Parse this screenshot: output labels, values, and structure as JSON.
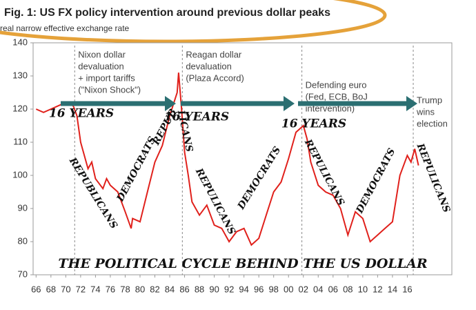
{
  "chart_data": {
    "type": "line",
    "title": "Fig. 1: US FX policy intervention around previous dollar peaks",
    "subtitle": "real narrow effective exchange rate",
    "caption": "THE POLITICAL CYCLE BEHIND THE US DOLLAR",
    "color": "#e0201b",
    "x": [
      1966,
      1967,
      1968,
      1969,
      1970,
      1971,
      1971.5,
      1972,
      1973,
      1973.5,
      1974,
      1975,
      1975.5,
      1976,
      1977,
      1978,
      1978.8,
      1979,
      1980,
      1981,
      1982,
      1983,
      1984,
      1985,
      1985.2,
      1985.6,
      1986,
      1986.5,
      1987,
      1988,
      1989,
      1990,
      1991,
      1992,
      1993,
      1994,
      1995,
      1996,
      1997,
      1998,
      1999,
      2000,
      2001,
      2002,
      2002.5,
      2003,
      2004,
      2005,
      2006,
      2007,
      2008,
      2009,
      2010,
      2011,
      2012,
      2013,
      2014,
      2015,
      2016,
      2016.5,
      2017,
      2017.5
    ],
    "values": [
      120,
      119,
      120,
      121,
      122,
      121,
      118,
      110,
      102,
      104,
      99,
      96,
      99,
      97,
      95,
      89,
      84,
      87,
      86,
      95,
      104,
      109,
      118,
      125,
      131,
      120,
      107,
      100,
      92,
      88,
      91,
      85,
      84,
      80,
      83,
      84,
      79,
      81,
      88,
      95,
      98,
      105,
      113,
      115,
      111,
      104,
      97,
      95,
      94,
      90,
      82,
      89,
      87,
      80,
      82,
      84,
      86,
      100,
      106,
      104,
      108,
      103
    ],
    "xlim": [
      1965.6,
      2022
    ],
    "ylim": [
      70,
      140
    ],
    "yticks": [
      70,
      80,
      90,
      100,
      110,
      120,
      130,
      140
    ],
    "xticks": [
      {
        "value": 1966,
        "label": "66"
      },
      {
        "value": 1968,
        "label": "68"
      },
      {
        "value": 1970,
        "label": "70"
      },
      {
        "value": 1972,
        "label": "72"
      },
      {
        "value": 1974,
        "label": "74"
      },
      {
        "value": 1976,
        "label": "76"
      },
      {
        "value": 1978,
        "label": "78"
      },
      {
        "value": 1980,
        "label": "80"
      },
      {
        "value": 1982,
        "label": "82"
      },
      {
        "value": 1984,
        "label": "84"
      },
      {
        "value": 1986,
        "label": "86"
      },
      {
        "value": 1988,
        "label": "88"
      },
      {
        "value": 1990,
        "label": "90"
      },
      {
        "value": 1992,
        "label": "92"
      },
      {
        "value": 1994,
        "label": "94"
      },
      {
        "value": 1996,
        "label": "96"
      },
      {
        "value": 1998,
        "label": "98"
      },
      {
        "value": 2000,
        "label": "00"
      },
      {
        "value": 2002,
        "label": "02"
      },
      {
        "value": 2004,
        "label": "04"
      },
      {
        "value": 2006,
        "label": "06"
      },
      {
        "value": 2008,
        "label": "08"
      },
      {
        "value": 2010,
        "label": "10"
      },
      {
        "value": 2012,
        "label": "12"
      },
      {
        "value": 2014,
        "label": "14"
      },
      {
        "value": 2016,
        "label": "16"
      }
    ],
    "events": [
      {
        "x": 1971.2,
        "lines": [
          "Nixon dollar",
          "devaluation",
          "+ import tariffs",
          "(\"Nixon Shock\")"
        ]
      },
      {
        "x": 1985.7,
        "lines": [
          "Reagan dollar",
          "devaluation",
          "(Plaza Accord)"
        ]
      },
      {
        "x": 2001.8,
        "lines": [
          "Defending euro",
          "(Fed, ECB, BoJ",
          "intervention)"
        ]
      },
      {
        "x": 2016.8,
        "lines": [
          "Trump",
          "wins",
          "election"
        ]
      }
    ],
    "annotations": [
      "16 YEARS",
      "16 YEARS",
      "16 YEARS",
      "REPUBLICANS",
      "DEMOCRATS",
      "REPUB",
      "LICANS",
      "REPULICANS",
      "DEMOCRATS",
      "REPULICANS",
      "DEMOCRATS",
      "REPULICANS"
    ]
  }
}
